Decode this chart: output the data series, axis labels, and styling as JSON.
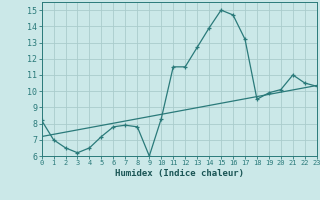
{
  "title": "",
  "xlabel": "Humidex (Indice chaleur)",
  "bg_color": "#cbe8e8",
  "grid_color": "#aacccc",
  "line_color": "#2a7a7a",
  "xlim": [
    0,
    23
  ],
  "ylim": [
    6,
    15.5
  ],
  "xticks": [
    0,
    1,
    2,
    3,
    4,
    5,
    6,
    7,
    8,
    9,
    10,
    11,
    12,
    13,
    14,
    15,
    16,
    17,
    18,
    19,
    20,
    21,
    22,
    23
  ],
  "yticks": [
    6,
    7,
    8,
    9,
    10,
    11,
    12,
    13,
    14,
    15
  ],
  "curve1_x": [
    0,
    1,
    2,
    3,
    4,
    5,
    6,
    7,
    8,
    9,
    10,
    11,
    12,
    13,
    14,
    15,
    16,
    17,
    18,
    19,
    20,
    21,
    22,
    23
  ],
  "curve1_y": [
    8.2,
    7.0,
    6.5,
    6.2,
    6.5,
    7.2,
    7.8,
    7.9,
    7.8,
    6.0,
    8.3,
    11.5,
    11.5,
    12.7,
    13.9,
    15.0,
    14.7,
    13.2,
    9.5,
    9.9,
    10.1,
    11.0,
    10.5,
    10.3
  ],
  "curve2_x": [
    0,
    23
  ],
  "curve2_y": [
    7.2,
    10.35
  ]
}
